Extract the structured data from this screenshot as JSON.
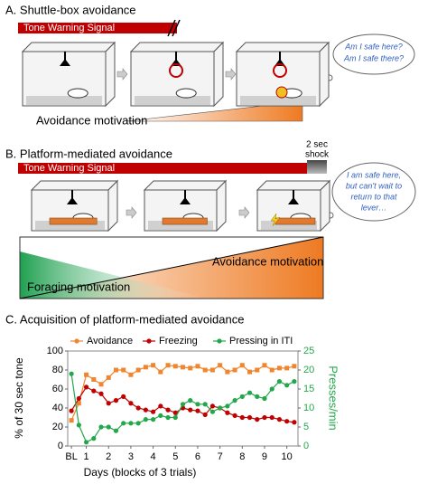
{
  "panel_a": {
    "title": "A. Shuttle-box avoidance",
    "tone_label": "Tone Warning Signal",
    "bubble": [
      "Am I safe here?",
      "Am I safe there?"
    ],
    "motivation": "Avoidance motivation"
  },
  "panel_b": {
    "title": "B. Platform-mediated avoidance",
    "shock": [
      "2 sec",
      "shock"
    ],
    "tone_label": "Tone Warning Signal",
    "bubble": [
      "I am safe here,",
      "but can't wait to",
      "return to that",
      "lever…"
    ],
    "avoidance_motivation": "Avoidance motivation",
    "foraging_motivation": "Foraging motivation"
  },
  "chart_data": {
    "type": "line",
    "title": "C. Acquisition of platform-mediated avoidance",
    "x": [
      0,
      1,
      2,
      3,
      4,
      5,
      6,
      7,
      8,
      9,
      10,
      11,
      12,
      13,
      14,
      15,
      16,
      17,
      18,
      19,
      20,
      21,
      22,
      23,
      24,
      25,
      26,
      27,
      28,
      29,
      30
    ],
    "xlim": [
      -0.5,
      30.5
    ],
    "xticks": [
      {
        "value": 0,
        "label": "BL"
      },
      {
        "value": 2,
        "label": "1"
      },
      {
        "value": 5,
        "label": "2"
      },
      {
        "value": 8,
        "label": "3"
      },
      {
        "value": 11,
        "label": "4"
      },
      {
        "value": 14,
        "label": "5"
      },
      {
        "value": 17,
        "label": "6"
      },
      {
        "value": 20,
        "label": "7"
      },
      {
        "value": 23,
        "label": "8"
      },
      {
        "value": 26,
        "label": "9"
      },
      {
        "value": 29,
        "label": "10"
      }
    ],
    "xlabel": "Days (blocks of 3 trials)",
    "ylabel": "% of 30 sec tone",
    "ylim": [
      0,
      100
    ],
    "yticks": [
      0,
      20,
      40,
      60,
      80,
      100
    ],
    "y2label": "Presses/min",
    "y2lim": [
      0,
      25
    ],
    "y2ticks": [
      0,
      5,
      10,
      15,
      20,
      25
    ],
    "series": [
      {
        "name": "Avoidance",
        "color": "#f0852d",
        "values": [
          27,
          45,
          75,
          70,
          65,
          72,
          80,
          80,
          75,
          80,
          83,
          85,
          78,
          85,
          84,
          83,
          82,
          84,
          80,
          80,
          85,
          78,
          80,
          85,
          78,
          80,
          85,
          80,
          82,
          82,
          84
        ]
      },
      {
        "name": "Freezing",
        "color": "#c00000",
        "values": [
          37,
          50,
          62,
          58,
          55,
          45,
          48,
          52,
          45,
          40,
          38,
          36,
          42,
          38,
          35,
          40,
          38,
          37,
          33,
          42,
          40,
          35,
          32,
          30,
          30,
          28,
          30,
          30,
          28,
          26,
          25
        ]
      },
      {
        "name": "Pressing in ITI",
        "color": "#22a84a",
        "axis": "y2",
        "values": [
          19,
          5.5,
          1,
          2,
          5,
          5,
          4,
          6,
          6,
          6,
          7,
          7,
          8,
          7.5,
          7.5,
          11,
          12,
          11,
          11,
          9,
          10,
          10.5,
          12,
          13,
          14,
          13,
          12.5,
          15,
          17,
          16,
          17
        ]
      }
    ]
  }
}
